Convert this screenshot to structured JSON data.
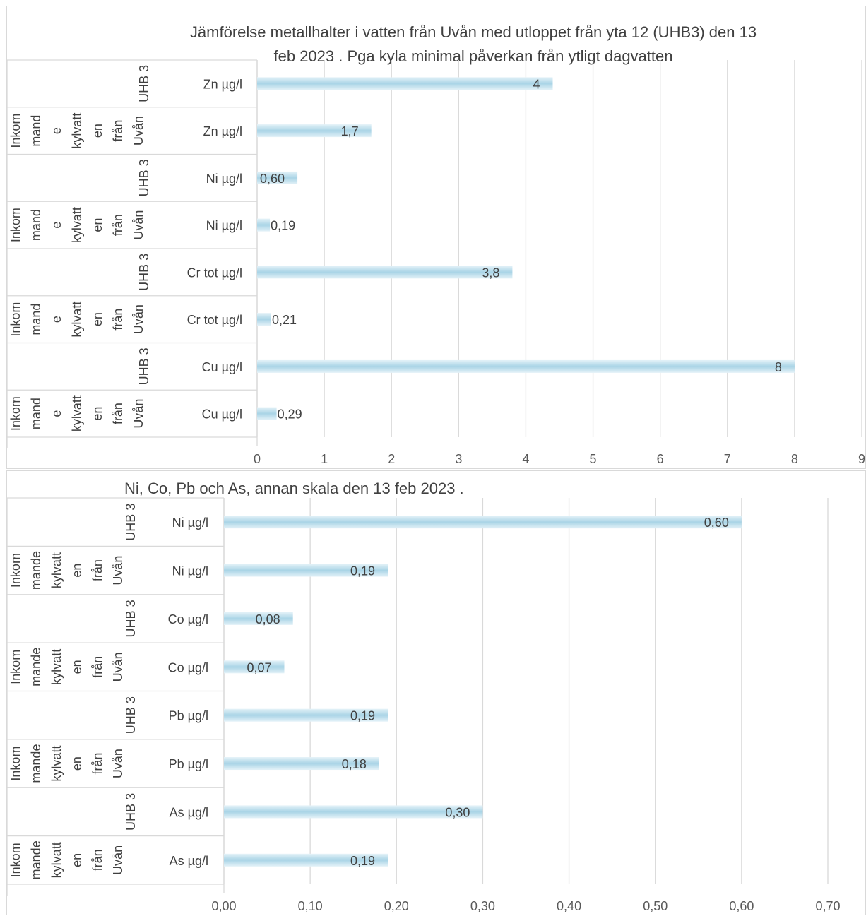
{
  "chart_data": [
    {
      "type": "bar",
      "orientation": "horizontal",
      "title_line1": "Jämförelse metallhalter i vatten från Uvån med utloppet från yta 12 (UHB3) den 13",
      "title_line2": "feb 2023 . Pga kyla minimal påverkan från ytligt dagvatten",
      "categories": [
        {
          "group": "UHB 3",
          "param": "Zn µg/l"
        },
        {
          "group": "Inkom mand e kylvatt en från Uvån",
          "param": "Zn µg/l"
        },
        {
          "group": "UHB 3",
          "param": "Ni µg/l"
        },
        {
          "group": "Inkom mand e kylvatt en från Uvån",
          "param": "Ni µg/l"
        },
        {
          "group": "UHB 3",
          "param": "Cr tot µg/l"
        },
        {
          "group": "Inkom mand e kylvatt en från Uvån",
          "param": "Cr tot µg/l"
        },
        {
          "group": "UHB 3",
          "param": "Cu µg/l"
        },
        {
          "group": "Inkom mand e kylvatt en från Uvån",
          "param": "Cu µg/l"
        }
      ],
      "values": [
        4.4,
        1.7,
        0.6,
        0.19,
        3.8,
        0.21,
        8,
        0.29
      ],
      "data_labels": [
        "4",
        "1,7",
        "0,60",
        "0,19",
        "3,8",
        "0,21",
        "8",
        "0,29"
      ],
      "xlim": [
        0,
        9
      ],
      "xticks": [
        0,
        1,
        2,
        3,
        4,
        5,
        6,
        7,
        8,
        9
      ],
      "xtick_labels": [
        "0",
        "1",
        "2",
        "3",
        "4",
        "5",
        "6",
        "7",
        "8",
        "9"
      ],
      "grid": true,
      "bar_color": "#a9d4e6"
    },
    {
      "type": "bar",
      "orientation": "horizontal",
      "title_line1": "Ni, Co, Pb och As, annan skala den 13 feb 2023 .",
      "categories": [
        {
          "group": "UHB 3",
          "param": "Ni µg/l"
        },
        {
          "group": "Inkom mande kylvatt en från Uvån",
          "param": "Ni µg/l"
        },
        {
          "group": "UHB 3",
          "param": "Co µg/l"
        },
        {
          "group": "Inkom mande kylvatt en från Uvån",
          "param": "Co µg/l"
        },
        {
          "group": "UHB 3",
          "param": "Pb µg/l"
        },
        {
          "group": "Inkom mande kylvatt en från Uvån",
          "param": "Pb µg/l"
        },
        {
          "group": "UHB 3",
          "param": "As µg/l"
        },
        {
          "group": "Inkom mande kylvatt en från Uvån",
          "param": "As µg/l"
        }
      ],
      "values": [
        0.6,
        0.19,
        0.08,
        0.07,
        0.19,
        0.18,
        0.3,
        0.19
      ],
      "data_labels": [
        "0,60",
        "0,19",
        "0,08",
        "0,07",
        "0,19",
        "0,18",
        "0,30",
        "0,19"
      ],
      "xlim": [
        0,
        0.7
      ],
      "xticks": [
        0,
        0.1,
        0.2,
        0.3,
        0.4,
        0.5,
        0.6,
        0.7
      ],
      "xtick_labels": [
        "0,00",
        "0,10",
        "0,20",
        "0,30",
        "0,40",
        "0,50",
        "0,60",
        "0,70"
      ],
      "grid": true,
      "bar_color": "#a9d4e6"
    }
  ]
}
